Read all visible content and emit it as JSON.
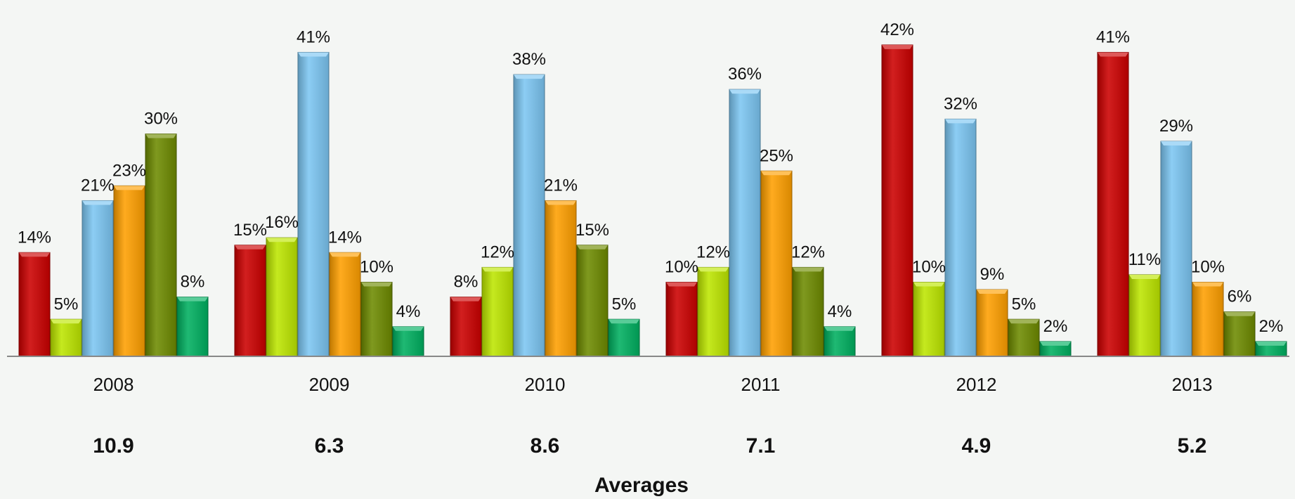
{
  "chart_data": {
    "type": "bar",
    "categories": [
      "2008",
      "2009",
      "2010",
      "2011",
      "2012",
      "2013"
    ],
    "series": [
      {
        "color": "#cc0000",
        "values": [
          14,
          15,
          8,
          10,
          42,
          41
        ]
      },
      {
        "color": "#bde600",
        "values": [
          5,
          16,
          12,
          12,
          10,
          11
        ]
      },
      {
        "color": "#7cc6f2",
        "values": [
          21,
          41,
          38,
          36,
          32,
          29
        ]
      },
      {
        "color": "#ffa000",
        "values": [
          23,
          14,
          21,
          25,
          9,
          10
        ]
      },
      {
        "color": "#6e8b00",
        "values": [
          30,
          10,
          15,
          12,
          5,
          6
        ]
      },
      {
        "color": "#00b060",
        "values": [
          8,
          4,
          5,
          4,
          2,
          2
        ]
      }
    ],
    "averages": [
      "10.9",
      "6.3",
      "8.6",
      "7.1",
      "4.9",
      "5.2"
    ],
    "value_suffix": "%",
    "xlabel": "Averages",
    "ylim": [
      0,
      45
    ],
    "grid": false,
    "legend": "none"
  }
}
